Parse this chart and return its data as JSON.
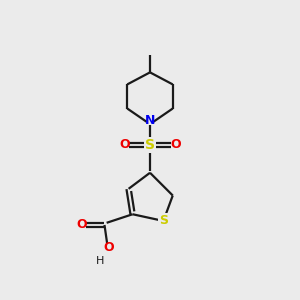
{
  "background_color": "#ebebeb",
  "bond_color": "#1a1a1a",
  "N_color": "#0000ee",
  "S_color": "#cccc00",
  "O_color": "#ee0000",
  "figsize": [
    3.0,
    3.0
  ],
  "dpi": 100,
  "xlim": [
    0,
    10
  ],
  "ylim": [
    0,
    11
  ],
  "lw": 1.6,
  "piperidine": {
    "Nx": 5.0,
    "Ny": 6.6,
    "RBx": 5.85,
    "RBy": 7.05,
    "RTx": 5.85,
    "RTy": 7.95,
    "Topx": 5.0,
    "Topy": 8.4,
    "LTx": 4.15,
    "LTy": 7.95,
    "LBx": 4.15,
    "LBy": 7.05,
    "methyl_x": 5.0,
    "methyl_y": 9.05
  },
  "sulfonyl": {
    "Sx": 5.0,
    "Sy": 5.7,
    "O1x": 4.05,
    "O1y": 5.7,
    "O2x": 5.95,
    "O2y": 5.7
  },
  "thiophene": {
    "C4x": 5.0,
    "C4y": 4.65,
    "C3x": 4.2,
    "C3y": 4.05,
    "C2x": 4.35,
    "C2y": 3.1,
    "TSx": 5.5,
    "TSy": 2.85,
    "C5x": 5.85,
    "C5y": 3.8
  },
  "carboxyl": {
    "COx": 3.3,
    "COy": 2.7,
    "O_keto_x": 2.45,
    "O_keto_y": 2.7,
    "O_oh_x": 3.4,
    "O_oh_y": 1.85,
    "H_x": 3.15,
    "H_y": 1.35
  }
}
